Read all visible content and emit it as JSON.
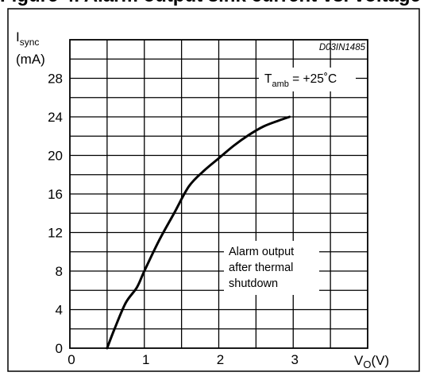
{
  "caption": "Figure 4. Alarm output sink current vs. voltage",
  "chart_data": {
    "type": "line",
    "code": "D03IN1485",
    "ylabel_main": "I",
    "ylabel_sub": "sync",
    "ylabel_unit": "(mA)",
    "xlabel_main": "V",
    "xlabel_sub": "O",
    "xlabel_unit": "(V)",
    "condition_main": "T",
    "condition_sub": "amb",
    "condition_rest": " = +25˚C",
    "annotation_lines": [
      "Alarm output",
      "after thermal",
      "shutdown"
    ],
    "x_ticks": [
      "0",
      "1",
      "2",
      "3"
    ],
    "y_ticks": [
      "0",
      "4",
      "8",
      "12",
      "16",
      "20",
      "24",
      "28"
    ],
    "xlim": [
      0,
      4
    ],
    "ylim": [
      0,
      32
    ],
    "grid": true,
    "series": [
      {
        "x": [
          0.5,
          0.6,
          0.75,
          0.9,
          1.0,
          1.2,
          1.4,
          1.6,
          1.8,
          2.0,
          2.2,
          2.4,
          2.6,
          2.8,
          2.95
        ],
        "y": [
          0,
          2.0,
          4.7,
          6.3,
          8.0,
          11.2,
          14.0,
          16.8,
          18.4,
          19.7,
          21.0,
          22.1,
          23.0,
          23.6,
          24.0
        ]
      }
    ]
  }
}
